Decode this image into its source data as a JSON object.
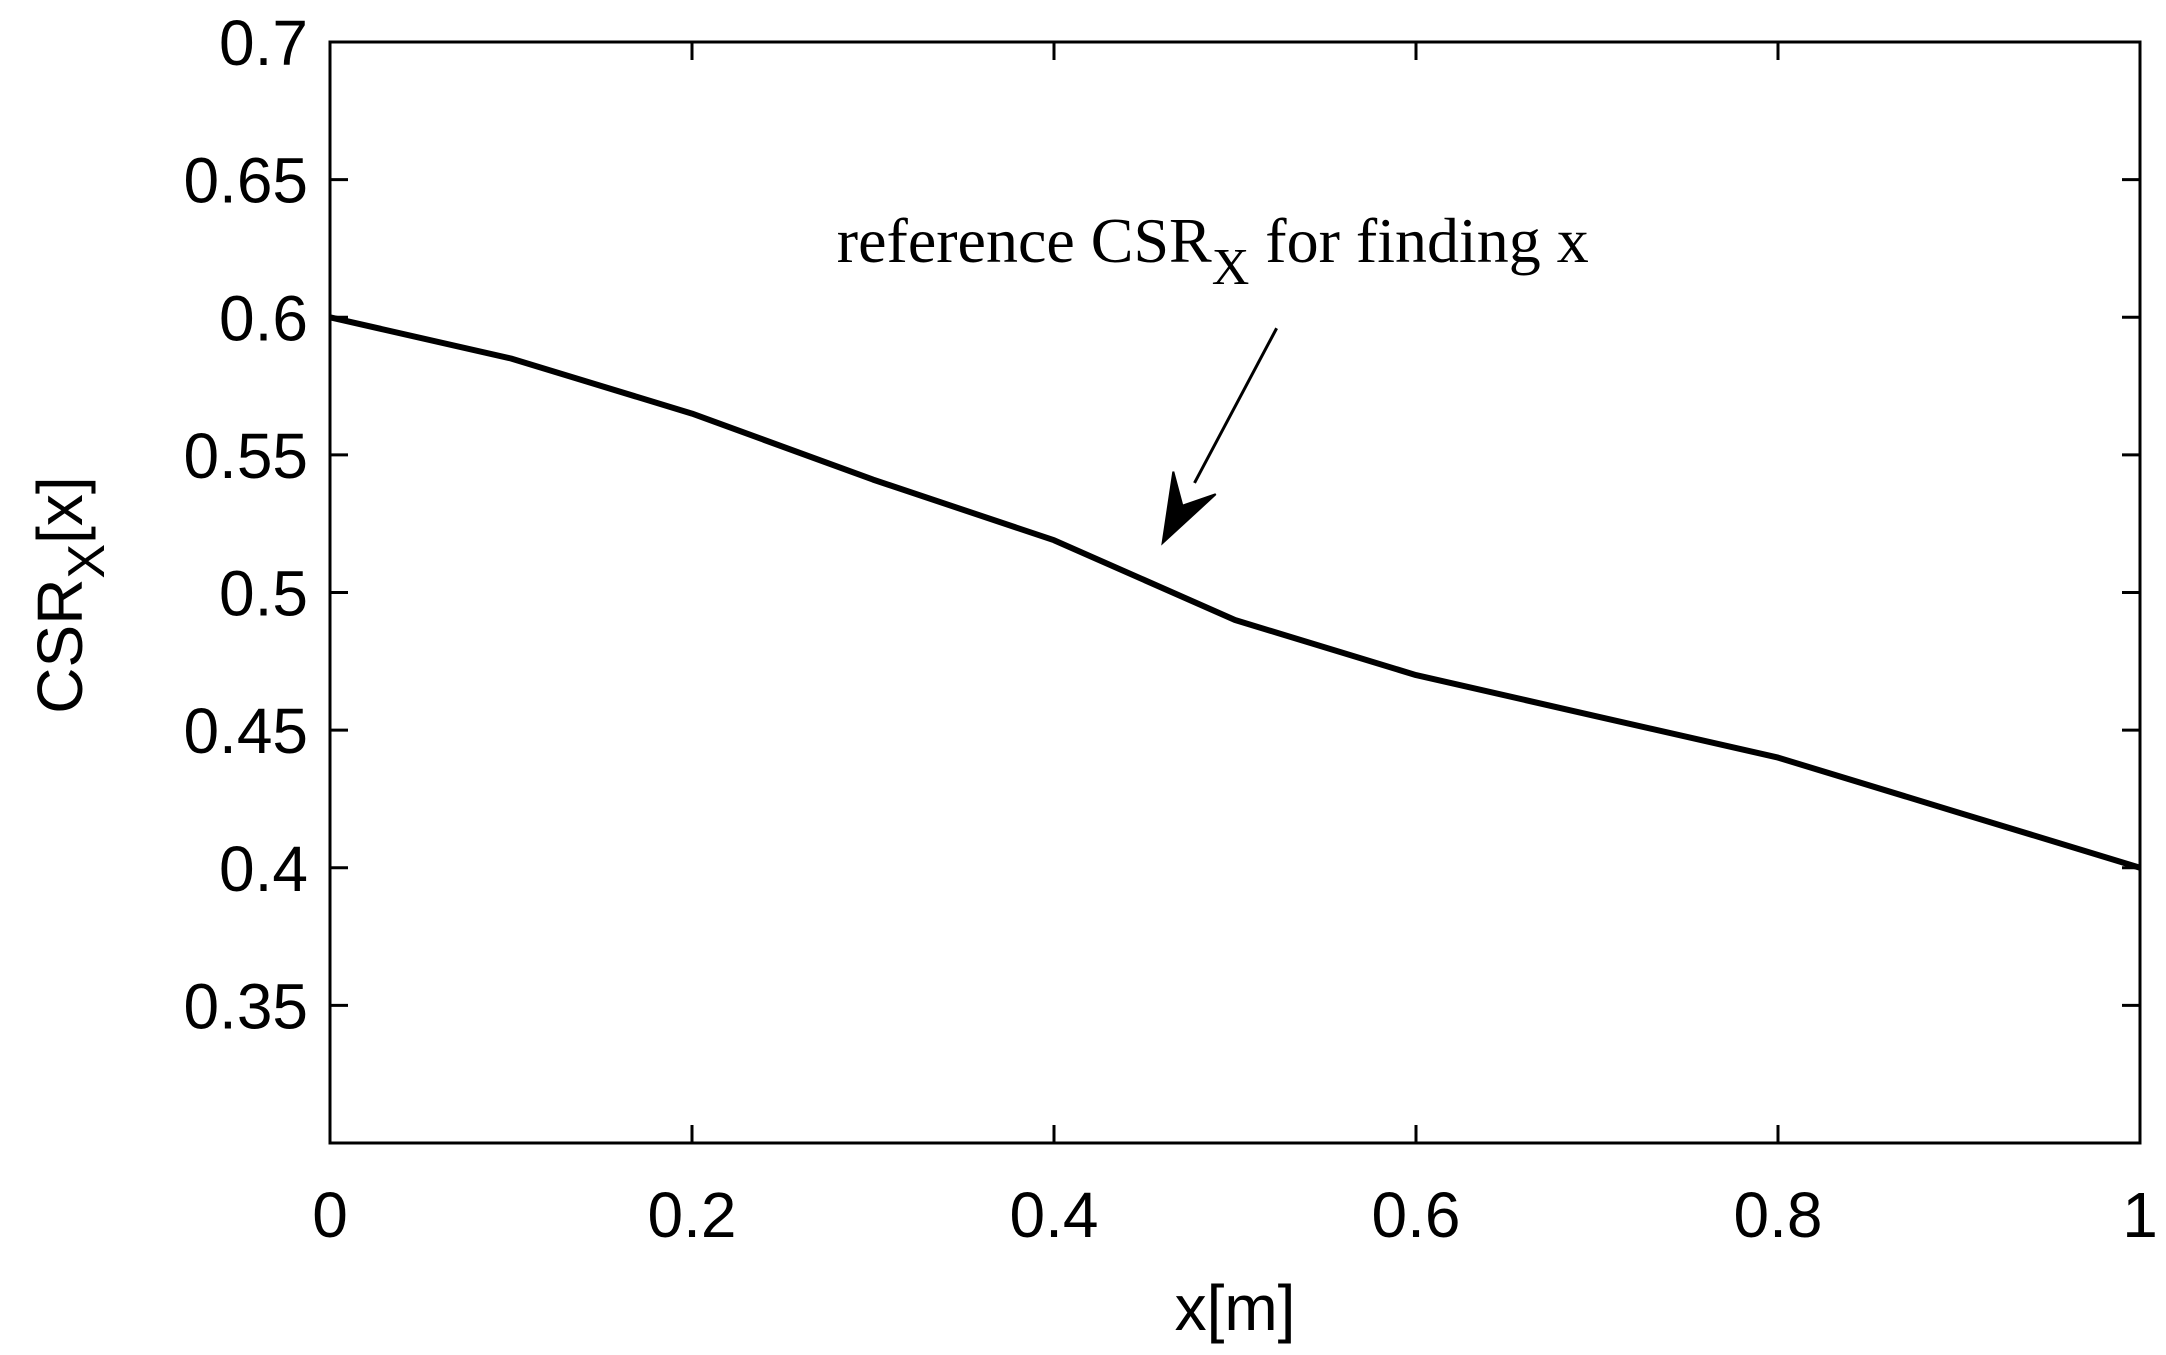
{
  "chart_data": {
    "type": "line",
    "title": "",
    "xlabel": "x[m]",
    "ylabel": {
      "main": "CSR",
      "sub": "X",
      "suffix": "[x]"
    },
    "xlim": [
      0,
      1
    ],
    "ylim": [
      0.3,
      0.7
    ],
    "xticks": [
      0,
      0.2,
      0.4,
      0.6,
      0.8,
      1
    ],
    "xtick_labels": [
      "0",
      "0.2",
      "0.4",
      "0.6",
      "0.8",
      "1"
    ],
    "yticks": [
      0.35,
      0.4,
      0.45,
      0.5,
      0.55,
      0.6,
      0.65,
      0.7
    ],
    "ytick_labels": [
      "0.35",
      "0.4",
      "0.45",
      "0.5",
      "0.55",
      "0.6",
      "0.65",
      "0.7"
    ],
    "grid": false,
    "legend": "none",
    "series": [
      {
        "x": [
          0,
          0.1,
          0.2,
          0.3,
          0.4,
          0.5,
          0.6,
          0.7,
          0.8,
          0.9,
          1.0
        ],
        "y": [
          0.6,
          0.585,
          0.565,
          0.541,
          0.519,
          0.49,
          0.47,
          0.455,
          0.44,
          0.42,
          0.4
        ],
        "color": "#000000"
      }
    ],
    "annotations": [
      {
        "text_main": "reference CSR",
        "text_sub": "X",
        "text_after": " for finding x",
        "text_at": [
          0.28,
          0.62
        ],
        "arrow_from": [
          0.523,
          0.596
        ],
        "arrow_to": [
          0.46,
          0.518
        ]
      }
    ]
  }
}
